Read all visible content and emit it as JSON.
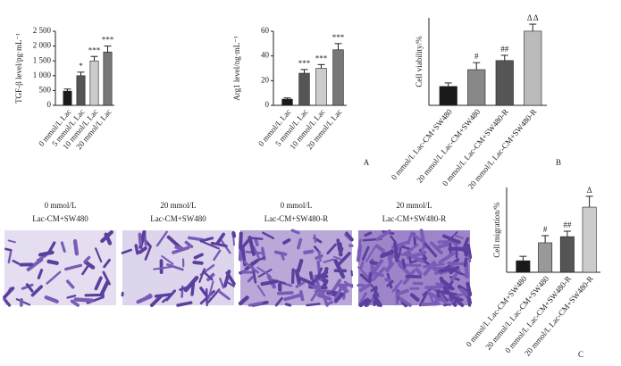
{
  "chart_data": [
    {
      "type": "bar",
      "ylabel": "TGF-β level/pg·mL⁻¹",
      "categories": [
        "0 mmol/L Lac",
        "5 mmol/L Lac",
        "10 mmol/L Lac",
        "20 mmol/L Lac"
      ],
      "values": [
        480,
        1000,
        1500,
        1800
      ],
      "errors": [
        70,
        120,
        150,
        200
      ],
      "value_annotations": [
        null,
        "*",
        "***",
        "***"
      ],
      "colors": [
        "#1a1a1a",
        "#555555",
        "#cccccc",
        "#777777"
      ],
      "ylim": [
        0,
        2500
      ],
      "yticks": [
        0,
        500,
        {
          "value": 1000,
          "label": "1 000"
        },
        {
          "value": 1500,
          "label": "1 500"
        },
        {
          "value": 2000,
          "label": "2 000"
        },
        {
          "value": 2500,
          "label": "2 500"
        }
      ]
    },
    {
      "type": "bar",
      "ylabel": "Arg1 level/ng·mL⁻¹",
      "categories": [
        "0 mmol/L Lac",
        "5 mmol/L Lac",
        "10 mmol/L Lac",
        "20 mmol/L Lac"
      ],
      "values": [
        5,
        26,
        30,
        45
      ],
      "errors": [
        1,
        3,
        3,
        5
      ],
      "value_annotations": [
        null,
        "***",
        "***",
        "***"
      ],
      "colors": [
        "#1a1a1a",
        "#555555",
        "#cccccc",
        "#777777"
      ],
      "ylim": [
        0,
        60
      ],
      "yticks": [
        0,
        20,
        40,
        60
      ]
    },
    {
      "type": "bar",
      "ylabel": "Cell viability/%",
      "categories": [
        "0 mmol/L Lac-CM+SW480",
        "20 mmol/L Lac-CM+SW480",
        "0 mmol/L Lac-CM+SW480-R",
        "20 mmol/L Lac-CM+SW480-R"
      ],
      "values": [
        54,
        102,
        128,
        212
      ],
      "errors": [
        10,
        20,
        15,
        20
      ],
      "value_annotations": [
        null,
        "#",
        "##",
        "Δ Δ"
      ],
      "colors": [
        "#1a1a1a",
        "#888888",
        "#555555",
        "#bbbbbb"
      ],
      "ylim": [
        0,
        250
      ]
    },
    {
      "type": "bar",
      "ylabel": "Cell migration/%",
      "categories": [
        "0 mmol/L Lac-CM+SW480",
        "20 mmol/L Lac-CM+SW480",
        "0 mmol/L Lac-CM+SW480-R",
        "20 mmol/L Lac-CM+SW480-R"
      ],
      "values": [
        34,
        87,
        105,
        192
      ],
      "errors": [
        13,
        21,
        16,
        32
      ],
      "value_annotations": [
        null,
        "#",
        "##",
        "Δ"
      ],
      "colors": [
        "#1a1a1a",
        "#999999",
        "#555555",
        "#cccccc"
      ],
      "ylim": [
        0,
        250
      ]
    }
  ],
  "panel_labels": [
    "A",
    "B",
    "C"
  ],
  "images": [
    [
      "0 mmol/L",
      "Lac-CM+SW480"
    ],
    [
      "20 mmol/L",
      "Lac-CM+SW480"
    ],
    [
      "0 mmol/L",
      "Lac-CM+SW480-R"
    ],
    [
      "20 mmol/L",
      "Lac-CM+SW480-R"
    ]
  ]
}
